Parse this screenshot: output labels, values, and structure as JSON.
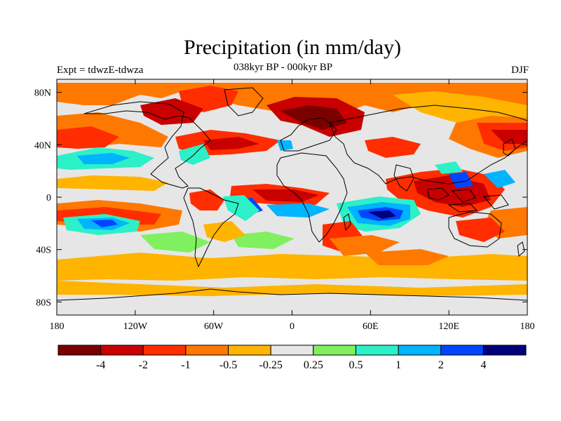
{
  "title": "Precipitation (in mm/day)",
  "left_string": "Expt = tdwzE-tdwza",
  "center_string": "038kyr BP - 000kyr BP",
  "right_string": "DJF",
  "map": {
    "projection": "cylindrical-equidistant",
    "lon_range": [
      -180,
      180
    ],
    "lat_range": [
      -90,
      90
    ],
    "x_ticks": [
      {
        "lon": -180,
        "label": "180"
      },
      {
        "lon": -120,
        "label": "120W"
      },
      {
        "lon": -60,
        "label": "60W"
      },
      {
        "lon": 0,
        "label": "0"
      },
      {
        "lon": 60,
        "label": "60E"
      },
      {
        "lon": 120,
        "label": "120E"
      },
      {
        "lon": 180,
        "label": "180"
      }
    ],
    "y_ticks": [
      {
        "lat": 80,
        "label": "80N"
      },
      {
        "lat": 40,
        "label": "40N"
      },
      {
        "lat": 0,
        "label": "0"
      },
      {
        "lat": -40,
        "label": "40S"
      },
      {
        "lat": -80,
        "label": "80S"
      }
    ],
    "background_color": "#e6e6e6",
    "coastline_color": "#000000",
    "contour_regions": [
      {
        "region": "north-atlantic-high-latitudes",
        "bin": 1,
        "lon": [
          -20,
          40
        ],
        "lat": [
          58,
          80
        ]
      },
      {
        "region": "north-atlantic-storm-track",
        "bin": 2,
        "lon": [
          -60,
          -15
        ],
        "lat": [
          35,
          52
        ]
      },
      {
        "region": "east-north-pacific",
        "bin": 2,
        "lon": [
          -180,
          -130
        ],
        "lat": [
          30,
          50
        ]
      },
      {
        "region": "north-west-pacific",
        "bin": 2,
        "lon": [
          135,
          180
        ],
        "lat": [
          28,
          50
        ]
      },
      {
        "region": "maritime-continent",
        "bin": 1,
        "lon": [
          85,
          145
        ],
        "lat": [
          -18,
          10
        ]
      },
      {
        "region": "equatorial-atlantic",
        "bin": 1,
        "lon": [
          -40,
          10
        ],
        "lat": [
          -2,
          5
        ]
      },
      {
        "region": "south-pacific-convergence",
        "bin": 2,
        "lon": [
          -150,
          -95
        ],
        "lat": [
          -20,
          -5
        ]
      },
      {
        "region": "southern-ocean-band",
        "bin": 4,
        "lon": [
          -180,
          180
        ],
        "lat": [
          -70,
          -55
        ]
      },
      {
        "region": "west-indian-ocean",
        "bin": 11,
        "lon": [
          45,
          75
        ],
        "lat": [
          -18,
          -3
        ]
      },
      {
        "region": "west-pacific-warm-pool",
        "bin": 11,
        "lon": [
          120,
          150
        ],
        "lat": [
          0,
          15
        ]
      },
      {
        "region": "tropical-pacific",
        "bin": 10,
        "lon": [
          -170,
          -120
        ],
        "lat": [
          -22,
          -14
        ]
      },
      {
        "region": "south-atlantic",
        "bin": 9,
        "lon": [
          -35,
          -10
        ],
        "lat": [
          -15,
          -5
        ]
      },
      {
        "region": "north-pacific-subtropics",
        "bin": 8,
        "lon": [
          -180,
          -130
        ],
        "lat": [
          20,
          30
        ]
      }
    ]
  },
  "colorbar": {
    "colors": [
      "#7a0000",
      "#c80000",
      "#ff2d00",
      "#ff7800",
      "#ffb400",
      "#e6e6e6",
      "#80f060",
      "#2cf0c8",
      "#00b4ff",
      "#0046ff",
      "#00007c"
    ],
    "labels": [
      "-4",
      "-2",
      "-1",
      "-0.5",
      "-0.25",
      "0.25",
      "0.5",
      "1",
      "2",
      "4"
    ]
  }
}
